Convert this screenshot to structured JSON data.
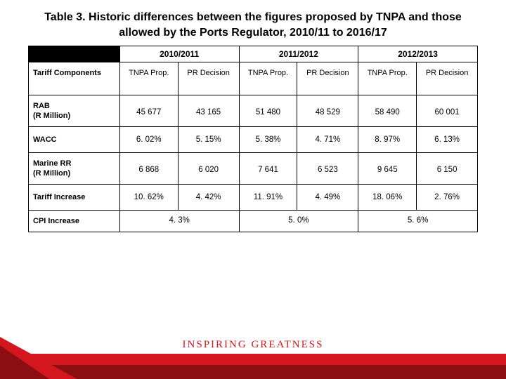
{
  "title": "Table 3. Historic differences between the figures proposed by TNPA and those allowed by the Ports Regulator, 2010/11 to 2016/17",
  "slogan": "INSPIRING GREATNESS",
  "colors": {
    "accent": "#d4171e",
    "accent_dark": "#8b0e12",
    "corner_bg": "#000000",
    "border": "#000000",
    "background": "#ffffff",
    "text": "#000000"
  },
  "table": {
    "type": "table",
    "year_headers": [
      "2010/2011",
      "2011/2012",
      "2012/2013"
    ],
    "sub_headers": {
      "row_label": "Tariff Components",
      "prop": "TNPA Prop.",
      "dec": "PR Decision"
    },
    "rows": [
      {
        "label": "RAB\n(R Million)",
        "cells": [
          "45 677",
          "43 165",
          "51 480",
          "48 529",
          "58 490",
          "60 001"
        ],
        "class": "rab"
      },
      {
        "label": "WACC",
        "cells": [
          "6. 02%",
          "5. 15%",
          "5. 38%",
          "4. 71%",
          "8. 97%",
          "6. 13%"
        ],
        "class": "wacc"
      },
      {
        "label": "Marine RR\n(R Million)",
        "cells": [
          "6 868",
          "6 020",
          "7 641",
          "6 523",
          "9 645",
          "6 150"
        ],
        "class": "marine"
      },
      {
        "label": "Tariff Increase",
        "cells": [
          "10. 62%",
          "4. 42%",
          "11. 91%",
          "4. 49%",
          "18. 06%",
          "2. 76%"
        ],
        "class": "tariffinc"
      },
      {
        "label": "CPI Increase",
        "spanned": [
          "4. 3%",
          "5. 0%",
          "5. 6%"
        ],
        "class": "cpi"
      }
    ],
    "font_size_pt": 11,
    "title_font_size_pt": 16,
    "column_count": 7
  }
}
